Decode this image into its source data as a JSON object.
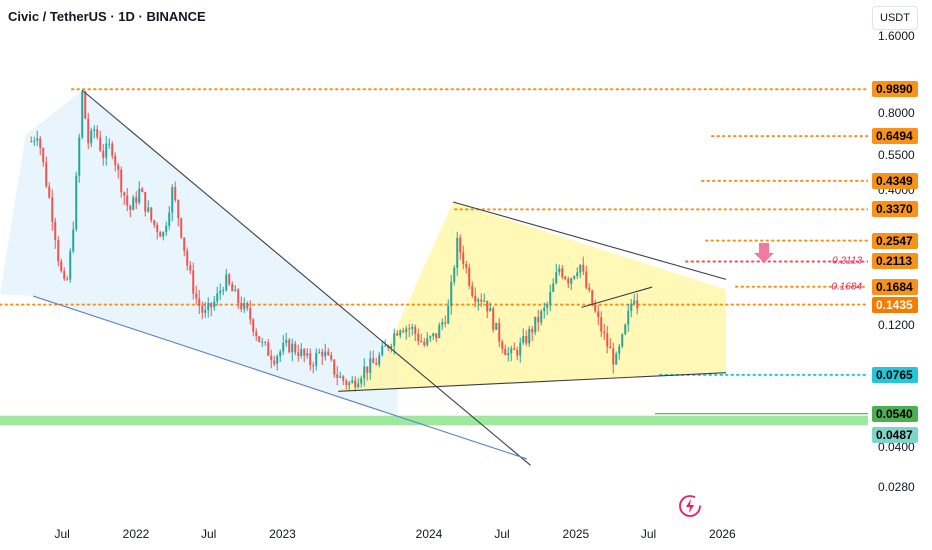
{
  "header": {
    "title": "Civic / TetherUS · 1D · BINANCE",
    "currency": "USDT"
  },
  "colors": {
    "up": "#26a69a",
    "down": "#ef5350",
    "level": "#f7931a",
    "level_label_bg": "#f7931a",
    "support": "#26c6da",
    "green_zone": "#7ee07e",
    "wedge_fill": "#e3f2fd",
    "triangle_fill": "#fff59d",
    "red_arrow": "#f06292",
    "fib_text": "#e91e63"
  },
  "chart_data": {
    "type": "candlestick",
    "title": "Civic / TetherUS · 1D · BINANCE",
    "x_axis": {
      "type": "date",
      "ticks": [
        "Jul",
        "2022",
        "Jul",
        "2023",
        "2024",
        "Jul",
        "2025",
        "Jul",
        "2026"
      ]
    },
    "y_axis": {
      "scale": "log",
      "unit": "USDT",
      "ticks": [
        "1.6000",
        "1.0000",
        "0.8000",
        "0.5500",
        "0.4000",
        "0.1200",
        "0.0400",
        "0.0280"
      ]
    },
    "price_levels": [
      {
        "value": 0.989,
        "label": "0.9890",
        "style": "dotted",
        "color": "#f7931a"
      },
      {
        "value": 0.6494,
        "label": "0.6494",
        "style": "dotted",
        "color": "#f7931a"
      },
      {
        "value": 0.4349,
        "label": "0.4349",
        "style": "dotted",
        "color": "#f7931a"
      },
      {
        "value": 0.337,
        "label": "0.3370",
        "style": "dotted",
        "color": "#f7931a"
      },
      {
        "value": 0.2547,
        "label": "0.2547",
        "style": "dotted",
        "color": "#f7931a"
      },
      {
        "value": 0.2113,
        "label": "0.2113",
        "style": "dotted",
        "color": "#ef5350",
        "note": "0.2113"
      },
      {
        "value": 0.1684,
        "label": "0.1684",
        "style": "dotted",
        "color": "#f7931a",
        "note": "0.1684"
      },
      {
        "value": 0.1435,
        "label": "0.1435",
        "style": "dotted",
        "color": "#f7931a",
        "current": true
      },
      {
        "value": 0.0765,
        "label": "0.0765",
        "style": "dotted",
        "color": "#26c6da"
      },
      {
        "value": 0.054,
        "label": "0.0540",
        "style": "solid",
        "color": "#4caf50"
      },
      {
        "value": 0.0487,
        "label": "0.0487",
        "style": "zone",
        "color": "#7ee07e"
      }
    ],
    "last_price": 0.1435,
    "price_path": [
      [
        "2021-04-15",
        0.62
      ],
      [
        "2021-05-01",
        0.68
      ],
      [
        "2021-05-20",
        0.45
      ],
      [
        "2021-06-10",
        0.3
      ],
      [
        "2021-06-25",
        0.2
      ],
      [
        "2021-07-10",
        0.16
      ],
      [
        "2021-07-25",
        0.25
      ],
      [
        "2021-08-10",
        0.55
      ],
      [
        "2021-08-20",
        0.95
      ],
      [
        "2021-09-05",
        0.6
      ],
      [
        "2021-09-20",
        0.7
      ],
      [
        "2021-10-10",
        0.55
      ],
      [
        "2021-11-01",
        0.6
      ],
      [
        "2021-11-20",
        0.45
      ],
      [
        "2021-12-15",
        0.33
      ],
      [
        "2022-01-10",
        0.4
      ],
      [
        "2022-02-10",
        0.3
      ],
      [
        "2022-03-10",
        0.27
      ],
      [
        "2022-04-01",
        0.4
      ],
      [
        "2022-04-20",
        0.3
      ],
      [
        "2022-05-10",
        0.2
      ],
      [
        "2022-06-01",
        0.15
      ],
      [
        "2022-06-20",
        0.13
      ],
      [
        "2022-07-20",
        0.15
      ],
      [
        "2022-08-10",
        0.18
      ],
      [
        "2022-09-10",
        0.15
      ],
      [
        "2022-10-10",
        0.13
      ],
      [
        "2022-11-10",
        0.1
      ],
      [
        "2022-12-10",
        0.09
      ],
      [
        "2023-01-15",
        0.1
      ],
      [
        "2023-02-10",
        0.095
      ],
      [
        "2023-03-10",
        0.085
      ],
      [
        "2023-04-10",
        0.095
      ],
      [
        "2023-05-20",
        0.075
      ],
      [
        "2023-06-20",
        0.07
      ],
      [
        "2023-07-20",
        0.08
      ],
      [
        "2023-08-20",
        0.085
      ],
      [
        "2023-09-20",
        0.1
      ],
      [
        "2023-10-20",
        0.12
      ],
      [
        "2023-11-20",
        0.115
      ],
      [
        "2023-12-20",
        0.1
      ],
      [
        "2024-01-20",
        0.11
      ],
      [
        "2024-02-20",
        0.14
      ],
      [
        "2024-03-10",
        0.25
      ],
      [
        "2024-03-25",
        0.22
      ],
      [
        "2024-04-20",
        0.16
      ],
      [
        "2024-05-20",
        0.15
      ],
      [
        "2024-06-20",
        0.11
      ],
      [
        "2024-07-20",
        0.09
      ],
      [
        "2024-08-20",
        0.1
      ],
      [
        "2024-09-20",
        0.12
      ],
      [
        "2024-10-20",
        0.14
      ],
      [
        "2024-11-20",
        0.2
      ],
      [
        "2024-12-15",
        0.18
      ],
      [
        "2025-01-10",
        0.21
      ],
      [
        "2025-01-25",
        0.17
      ],
      [
        "2025-02-20",
        0.13
      ],
      [
        "2025-03-20",
        0.1
      ],
      [
        "2025-04-10",
        0.085
      ],
      [
        "2025-05-01",
        0.11
      ],
      [
        "2025-05-25",
        0.16
      ],
      [
        "2025-06-05",
        0.1435
      ]
    ],
    "pattern_lines": [
      {
        "name": "falling-wedge-upper",
        "from": [
          "2021-08-20",
          0.98
        ],
        "to": [
          "2024-09-10",
          0.034
        ]
      },
      {
        "name": "falling-wedge-lower",
        "from": [
          "2021-04-20",
          0.155
        ],
        "to": [
          "2024-09-01",
          0.036
        ]
      },
      {
        "name": "triangle-upper",
        "from": [
          "2024-03-01",
          0.36
        ],
        "to": [
          "2026-01-10",
          0.18
        ]
      },
      {
        "name": "triangle-lower",
        "from": [
          "2023-05-20",
          0.066
        ],
        "to": [
          "2026-01-10",
          0.078
        ]
      },
      {
        "name": "inner-resistance",
        "from": [
          "2025-01-15",
          0.14
        ],
        "to": [
          "2025-07-10",
          0.168
        ]
      }
    ]
  }
}
